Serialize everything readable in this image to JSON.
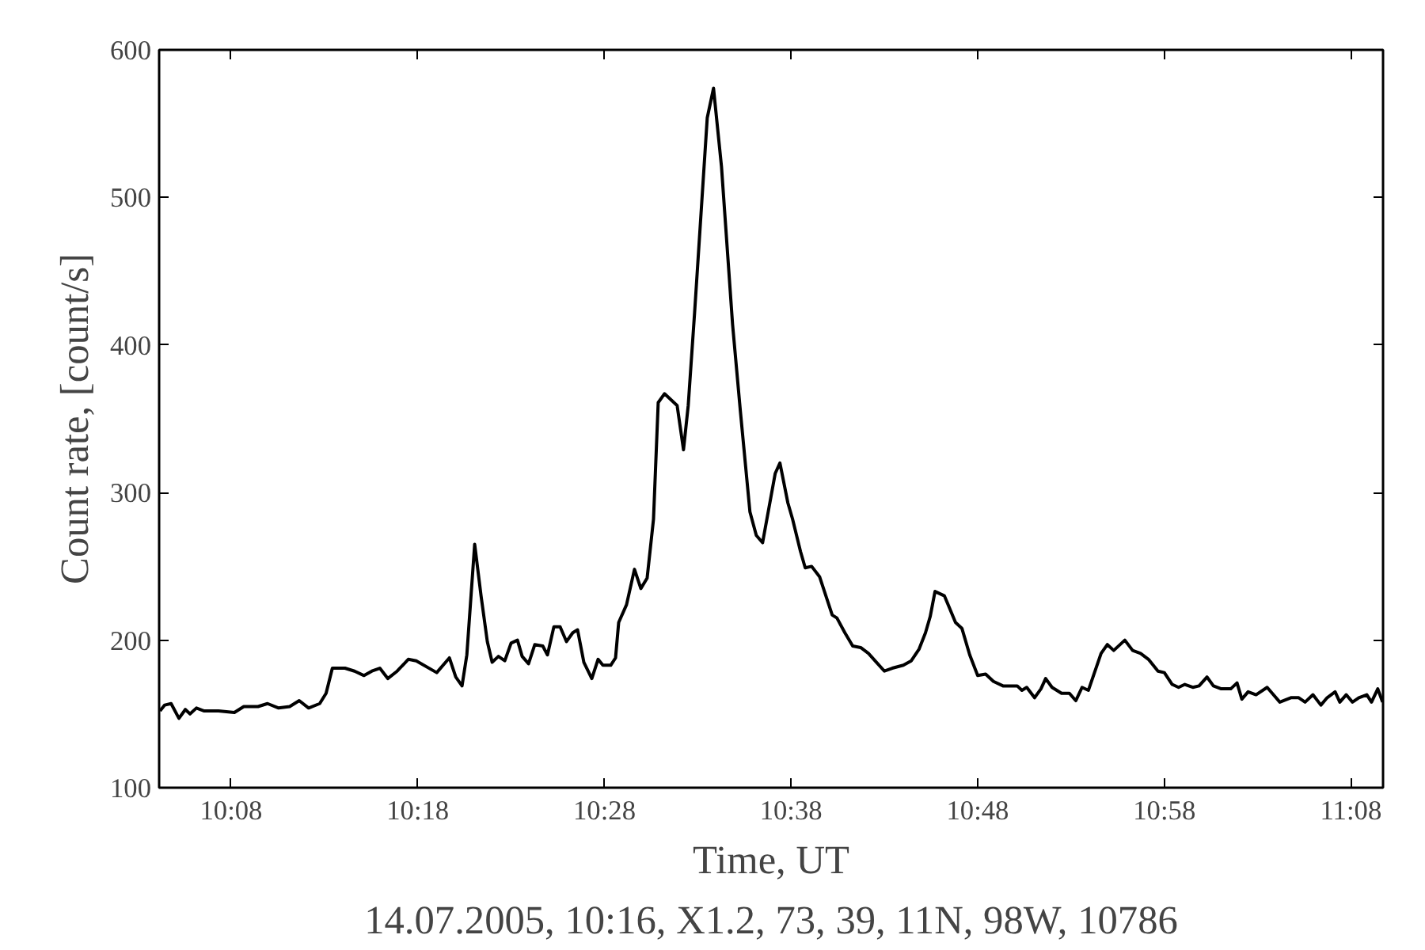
{
  "chart_data": {
    "type": "line",
    "xlabel": "Time, UT",
    "ylabel": "Count rate, [count/s]",
    "annotations": [
      "14.07.2005, 10:16, X1.2, 73, 39, 11N, 98W, 10786"
    ],
    "xlim": [
      10.069,
      11.162
    ],
    "ylim": [
      100,
      600
    ],
    "xticks": [
      {
        "value": 10.1333,
        "label": "10:08"
      },
      {
        "value": 10.3,
        "label": "10:18"
      },
      {
        "value": 10.4667,
        "label": "10:28"
      },
      {
        "value": 10.6333,
        "label": "10:38"
      },
      {
        "value": 10.8,
        "label": "10:48"
      },
      {
        "value": 10.9667,
        "label": "10:58"
      },
      {
        "value": 11.1333,
        "label": "11:08"
      }
    ],
    "yticks": [
      100,
      200,
      300,
      400,
      500,
      600
    ],
    "grid": false,
    "marker": "none",
    "line_style": "solid",
    "series": [
      {
        "color": "#000000",
        "x": [
          10.0698,
          10.074,
          10.0797,
          10.0867,
          10.0924,
          10.0966,
          10.1023,
          10.1093,
          10.122,
          10.1362,
          10.1446,
          10.1573,
          10.1658,
          10.1757,
          10.1856,
          10.1941,
          10.2025,
          10.2124,
          10.2181,
          10.2237,
          10.235,
          10.2435,
          10.252,
          10.259,
          10.2661,
          10.2732,
          10.2816,
          10.2915,
          10.2986,
          10.3169,
          10.3282,
          10.3339,
          10.3395,
          10.3438,
          10.3508,
          10.3565,
          10.3621,
          10.3664,
          10.372,
          10.3777,
          10.3833,
          10.389,
          10.3932,
          10.3989,
          10.4045,
          10.4116,
          10.4158,
          10.4215,
          10.4271,
          10.4328,
          10.4384,
          10.4427,
          10.4483,
          10.4554,
          10.461,
          10.4653,
          10.4723,
          10.4766,
          10.4794,
          10.4864,
          10.4935,
          10.4992,
          10.5048,
          10.5105,
          10.5147,
          10.5203,
          10.5316,
          10.5373,
          10.5415,
          10.5472,
          10.5585,
          10.5641,
          10.5712,
          10.5811,
          10.5881,
          10.5966,
          10.6023,
          10.6079,
          10.6192,
          10.6234,
          10.6305,
          10.6347,
          10.6418,
          10.646,
          10.6517,
          10.6588,
          10.6701,
          10.6743,
          10.6814,
          10.6884,
          10.6955,
          10.7025,
          10.7096,
          10.7167,
          10.7237,
          10.7336,
          10.7407,
          10.7477,
          10.7534,
          10.7576,
          10.7619,
          10.7703,
          10.7802,
          10.7859,
          10.7929,
          10.8,
          10.8071,
          10.8141,
          10.8226,
          10.8353,
          10.8395,
          10.8438,
          10.8508,
          10.8565,
          10.8607,
          10.8664,
          10.8749,
          10.8819,
          10.8876,
          10.8932,
          10.8989,
          10.9102,
          10.9158,
          10.9215,
          10.9314,
          10.9384,
          10.9455,
          10.9525,
          10.961,
          10.9667,
          10.9737,
          10.9794,
          10.985,
          10.9921,
          10.9977,
          11.0048,
          11.0105,
          11.0175,
          11.026,
          11.0316,
          11.0359,
          11.0415,
          11.0486,
          11.0585,
          11.0641,
          11.0698,
          11.0797,
          11.0867,
          11.0924,
          11.0994,
          11.1065,
          11.1121,
          11.1192,
          11.1234,
          11.1291,
          11.1347,
          11.1404,
          11.1475,
          11.1517,
          11.1573,
          11.1616
        ],
        "values": [
          152,
          156,
          157,
          147,
          153,
          150,
          154,
          152,
          152,
          151,
          155,
          155,
          157,
          154,
          155,
          159,
          154,
          157,
          164,
          181,
          181,
          179,
          176,
          179,
          181,
          174,
          179,
          187,
          186,
          178,
          188,
          175,
          169,
          190,
          265,
          230,
          199,
          185,
          189,
          186,
          198,
          200,
          189,
          184,
          197,
          196,
          190,
          209,
          209,
          199,
          205,
          207,
          185,
          174,
          187,
          183,
          183,
          188,
          212,
          224,
          248,
          235,
          242,
          282,
          361,
          367,
          359,
          329,
          359,
          422,
          554,
          574,
          521,
          414,
          355,
          287,
          271,
          266,
          313,
          320,
          293,
          282,
          260,
          249,
          250,
          243,
          217,
          215,
          205,
          196,
          195,
          191,
          185,
          179,
          181,
          183,
          186,
          194,
          205,
          216,
          233,
          230,
          212,
          208,
          190,
          176,
          177,
          172,
          169,
          169,
          166,
          168,
          161,
          167,
          174,
          168,
          164,
          164,
          159,
          168,
          166,
          191,
          197,
          193,
          200,
          193,
          191,
          187,
          179,
          178,
          170,
          168,
          170,
          168,
          169,
          175,
          169,
          167,
          167,
          171,
          160,
          165,
          163,
          168,
          163,
          158,
          161,
          161,
          158,
          163,
          156,
          161,
          165,
          158,
          163,
          158,
          161,
          163,
          158,
          167,
          158
        ]
      }
    ]
  }
}
